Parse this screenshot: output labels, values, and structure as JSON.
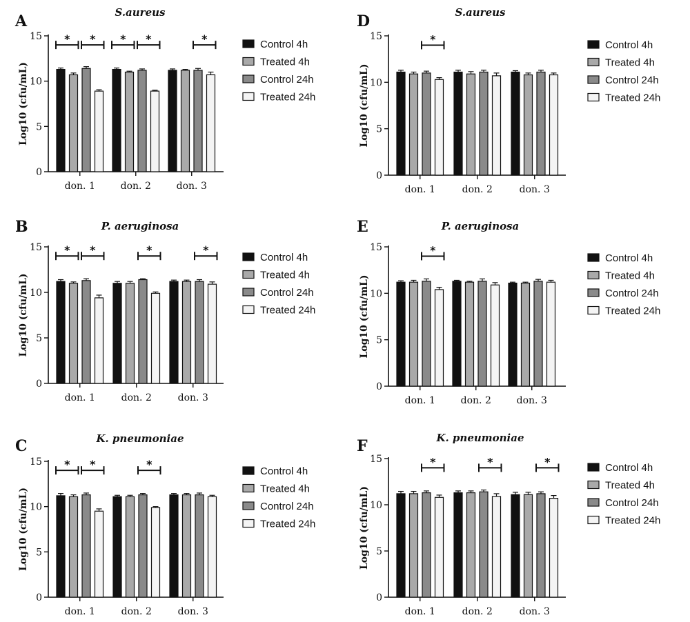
{
  "chart_data": [
    {
      "type": "bar",
      "panel": "A",
      "title": "S.aureus",
      "ylabel": "Log10 (cfu/mL)",
      "ylim": [
        0,
        15
      ],
      "yticks": [
        0,
        5,
        10,
        15
      ],
      "categories": [
        "don. 1",
        "don. 2",
        "don. 3"
      ],
      "series": [
        {
          "name": "Control 4h",
          "values": [
            11.3,
            11.3,
            11.2
          ]
        },
        {
          "name": "Treated 4h",
          "values": [
            10.7,
            11.0,
            11.2
          ]
        },
        {
          "name": "Control 24h",
          "values": [
            11.4,
            11.2,
            11.2
          ]
        },
        {
          "name": "Treated 24h",
          "values": [
            8.9,
            8.9,
            10.7
          ]
        }
      ],
      "errors": [
        [
          0.15,
          0.15,
          0.15
        ],
        [
          0.2,
          0.1,
          0.1
        ],
        [
          0.2,
          0.15,
          0.2
        ],
        [
          0.15,
          0.1,
          0.3
        ]
      ],
      "significance": [
        {
          "group": 0,
          "from": 0,
          "to": 1,
          "label": "*"
        },
        {
          "group": 0,
          "from": 2,
          "to": 3,
          "label": "*"
        },
        {
          "group": 1,
          "from": 0,
          "to": 1,
          "label": "*"
        },
        {
          "group": 1,
          "from": 2,
          "to": 3,
          "label": "*"
        },
        {
          "group": 2,
          "from": 2,
          "to": 3,
          "label": "*"
        }
      ],
      "legend": [
        "Control 4h",
        "Treated 4h",
        "Control 24h",
        "Treated 24h"
      ]
    },
    {
      "type": "bar",
      "panel": "B",
      "title": "P. aeruginosa",
      "ylabel": "Log10 (cfu/mL)",
      "ylim": [
        0,
        15
      ],
      "yticks": [
        0,
        5,
        10,
        15
      ],
      "categories": [
        "don. 1",
        "don. 2",
        "don. 3"
      ],
      "series": [
        {
          "name": "Control 4h",
          "values": [
            11.2,
            11.0,
            11.2
          ]
        },
        {
          "name": "Treated 4h",
          "values": [
            11.0,
            11.0,
            11.2
          ]
        },
        {
          "name": "Control 24h",
          "values": [
            11.3,
            11.4,
            11.2
          ]
        },
        {
          "name": "Treated 24h",
          "values": [
            9.4,
            9.9,
            10.9
          ]
        }
      ],
      "errors": [
        [
          0.2,
          0.2,
          0.15
        ],
        [
          0.15,
          0.2,
          0.15
        ],
        [
          0.2,
          0.1,
          0.2
        ],
        [
          0.3,
          0.15,
          0.25
        ]
      ],
      "significance": [
        {
          "group": 0,
          "from": 0,
          "to": 1,
          "label": "*"
        },
        {
          "group": 0,
          "from": 2,
          "to": 3,
          "label": "*"
        },
        {
          "group": 1,
          "from": 2,
          "to": 3,
          "label": "*"
        },
        {
          "group": 2,
          "from": 2,
          "to": 3,
          "label": "*"
        }
      ],
      "legend": [
        "Control 4h",
        "Treated 4h",
        "Control 24h",
        "Treated 24h"
      ]
    },
    {
      "type": "bar",
      "panel": "C",
      "title": "K. pneumoniae",
      "ylabel": "Log10 (cfu/mL)",
      "ylim": [
        0,
        15
      ],
      "yticks": [
        0,
        5,
        10,
        15
      ],
      "categories": [
        "don. 1",
        "don. 2",
        "don. 3"
      ],
      "series": [
        {
          "name": "Control 4h",
          "values": [
            11.2,
            11.1,
            11.3
          ]
        },
        {
          "name": "Treated 4h",
          "values": [
            11.1,
            11.1,
            11.3
          ]
        },
        {
          "name": "Control 24h",
          "values": [
            11.3,
            11.3,
            11.3
          ]
        },
        {
          "name": "Treated 24h",
          "values": [
            9.5,
            9.9,
            11.1
          ]
        }
      ],
      "errors": [
        [
          0.25,
          0.15,
          0.15
        ],
        [
          0.2,
          0.15,
          0.15
        ],
        [
          0.2,
          0.15,
          0.2
        ],
        [
          0.25,
          0.1,
          0.15
        ]
      ],
      "significance": [
        {
          "group": 0,
          "from": 0,
          "to": 1,
          "label": "*"
        },
        {
          "group": 0,
          "from": 2,
          "to": 3,
          "label": "*"
        },
        {
          "group": 1,
          "from": 2,
          "to": 3,
          "label": "*"
        }
      ],
      "legend": [
        "Control 4h",
        "Treated 4h",
        "Control 24h",
        "Treated 24h"
      ]
    },
    {
      "type": "bar",
      "panel": "D",
      "title": "S.aureus",
      "ylabel": "Log10 (cfu/mL)",
      "ylim": [
        0,
        15
      ],
      "yticks": [
        0,
        5,
        10,
        15
      ],
      "categories": [
        "don. 1",
        "don. 2",
        "don. 3"
      ],
      "series": [
        {
          "name": "Control 4h",
          "values": [
            11.1,
            11.1,
            11.1
          ]
        },
        {
          "name": "Treated 4h",
          "values": [
            10.9,
            10.9,
            10.8
          ]
        },
        {
          "name": "Control 24h",
          "values": [
            11.0,
            11.1,
            11.1
          ]
        },
        {
          "name": "Treated 24h",
          "values": [
            10.3,
            10.7,
            10.8
          ]
        }
      ],
      "errors": [
        [
          0.2,
          0.2,
          0.15
        ],
        [
          0.2,
          0.25,
          0.2
        ],
        [
          0.2,
          0.2,
          0.2
        ],
        [
          0.2,
          0.3,
          0.2
        ]
      ],
      "significance": [
        {
          "group": 0,
          "from": 2,
          "to": 3,
          "label": "*"
        }
      ],
      "legend": [
        "Control 4h",
        "Treated 4h",
        "Control 24h",
        "Treated 24h"
      ]
    },
    {
      "type": "bar",
      "panel": "E",
      "title": "P. aeruginosa",
      "ylabel": "Log10 (cfu/mL)",
      "ylim": [
        0,
        15
      ],
      "yticks": [
        0,
        5,
        10,
        15
      ],
      "categories": [
        "don. 1",
        "don. 2",
        "don. 3"
      ],
      "series": [
        {
          "name": "Control 4h",
          "values": [
            11.2,
            11.3,
            11.1
          ]
        },
        {
          "name": "Treated 4h",
          "values": [
            11.2,
            11.2,
            11.1
          ]
        },
        {
          "name": "Control 24h",
          "values": [
            11.3,
            11.3,
            11.3
          ]
        },
        {
          "name": "Treated 24h",
          "values": [
            10.4,
            10.9,
            11.2
          ]
        }
      ],
      "errors": [
        [
          0.15,
          0.1,
          0.1
        ],
        [
          0.2,
          0.1,
          0.1
        ],
        [
          0.25,
          0.25,
          0.2
        ],
        [
          0.25,
          0.25,
          0.2
        ]
      ],
      "significance": [
        {
          "group": 0,
          "from": 2,
          "to": 3,
          "label": "*"
        }
      ],
      "legend": [
        "Control 4h",
        "Treated 4h",
        "Control 24h",
        "Treated 24h"
      ]
    },
    {
      "type": "bar",
      "panel": "F",
      "title": "K. pneumoniae",
      "ylabel": "Log10 (cfu/mL)",
      "ylim": [
        0,
        15
      ],
      "yticks": [
        0,
        5,
        10,
        15
      ],
      "categories": [
        "don. 1",
        "don. 2",
        "don. 3"
      ],
      "series": [
        {
          "name": "Control 4h",
          "values": [
            11.2,
            11.3,
            11.1
          ]
        },
        {
          "name": "Treated 4h",
          "values": [
            11.2,
            11.3,
            11.1
          ]
        },
        {
          "name": "Control 24h",
          "values": [
            11.3,
            11.4,
            11.2
          ]
        },
        {
          "name": "Treated 24h",
          "values": [
            10.8,
            10.9,
            10.7
          ]
        }
      ],
      "errors": [
        [
          0.25,
          0.2,
          0.25
        ],
        [
          0.25,
          0.2,
          0.25
        ],
        [
          0.2,
          0.2,
          0.2
        ],
        [
          0.25,
          0.3,
          0.3
        ]
      ],
      "significance": [
        {
          "group": 0,
          "from": 2,
          "to": 3,
          "label": "*"
        },
        {
          "group": 1,
          "from": 2,
          "to": 3,
          "label": "*"
        },
        {
          "group": 2,
          "from": 2,
          "to": 3,
          "label": "*"
        }
      ],
      "legend": [
        "Control 4h",
        "Treated 4h",
        "Control 24h",
        "Treated 24h"
      ]
    }
  ],
  "colors": {
    "series_fill": [
      "#111111",
      "#a9a9a9",
      "#8a8a8a",
      "#f4f4f4"
    ],
    "stroke": "#111111"
  }
}
